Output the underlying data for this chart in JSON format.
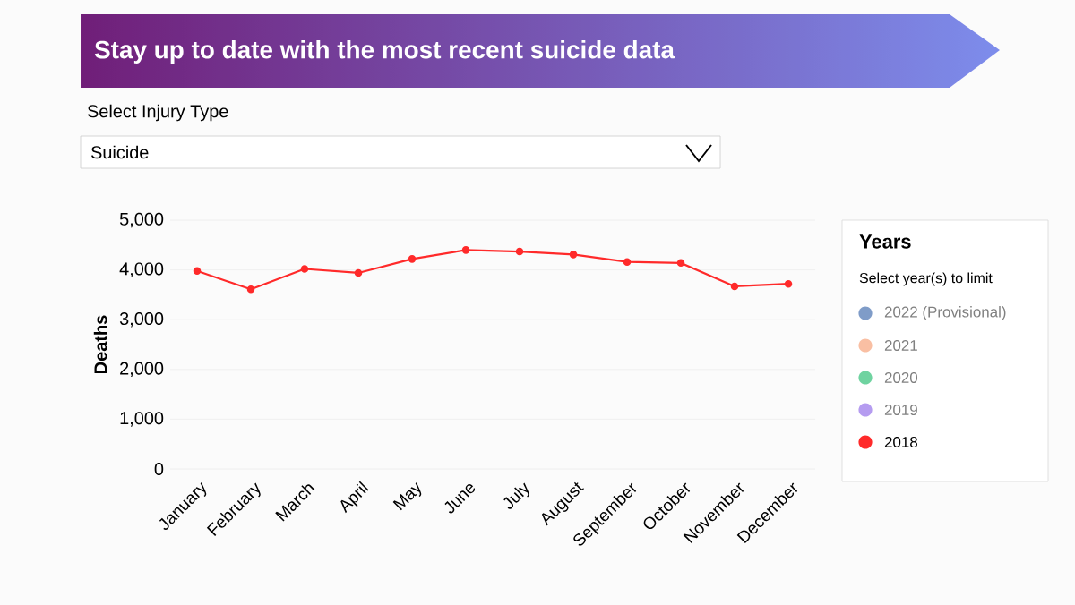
{
  "chart_data": {
    "type": "line",
    "title": "Stay up to date with the most recent suicide data",
    "annotations": [
      "Select Injury Type",
      "Suicide",
      "Select year(s) to limit"
    ],
    "ylabel": "Deaths",
    "legend_title": "Years",
    "categories": [
      "January",
      "February",
      "March",
      "April",
      "May",
      "June",
      "July",
      "August",
      "September",
      "October",
      "November",
      "December"
    ],
    "series": [
      {
        "name": "2022 (Provisional)",
        "color": "#7f9cc8",
        "values": [
          null,
          null,
          null,
          null,
          null,
          null,
          null,
          null,
          null,
          null,
          null,
          null
        ]
      },
      {
        "name": "2021",
        "color": "#f9bfa3",
        "values": [
          null,
          null,
          null,
          null,
          null,
          null,
          null,
          null,
          null,
          null,
          null,
          null
        ]
      },
      {
        "name": "2020",
        "color": "#6fd3a0",
        "values": [
          null,
          null,
          null,
          null,
          null,
          null,
          null,
          null,
          null,
          null,
          null,
          null
        ]
      },
      {
        "name": "2019",
        "color": "#b59cf0",
        "values": [
          null,
          null,
          null,
          null,
          null,
          null,
          null,
          null,
          null,
          null,
          null,
          null
        ]
      },
      {
        "name": "2018",
        "color": "#ff2a2a",
        "values": [
          3980,
          3610,
          4020,
          3940,
          4220,
          4400,
          4370,
          4310,
          4160,
          4140,
          3670,
          3720
        ]
      }
    ],
    "ylim": [
      0,
      5000
    ],
    "yticks": [
      {
        "value": 0,
        "label": "0"
      },
      {
        "value": 1000,
        "label": "1,000"
      },
      {
        "value": 2000,
        "label": "2,000"
      },
      {
        "value": 3000,
        "label": "3,000"
      },
      {
        "value": 4000,
        "label": "4,000"
      },
      {
        "value": 5000,
        "label": "5,000"
      }
    ],
    "grid": "y",
    "legend": "right",
    "marker": "circle",
    "line_style": "solid"
  }
}
